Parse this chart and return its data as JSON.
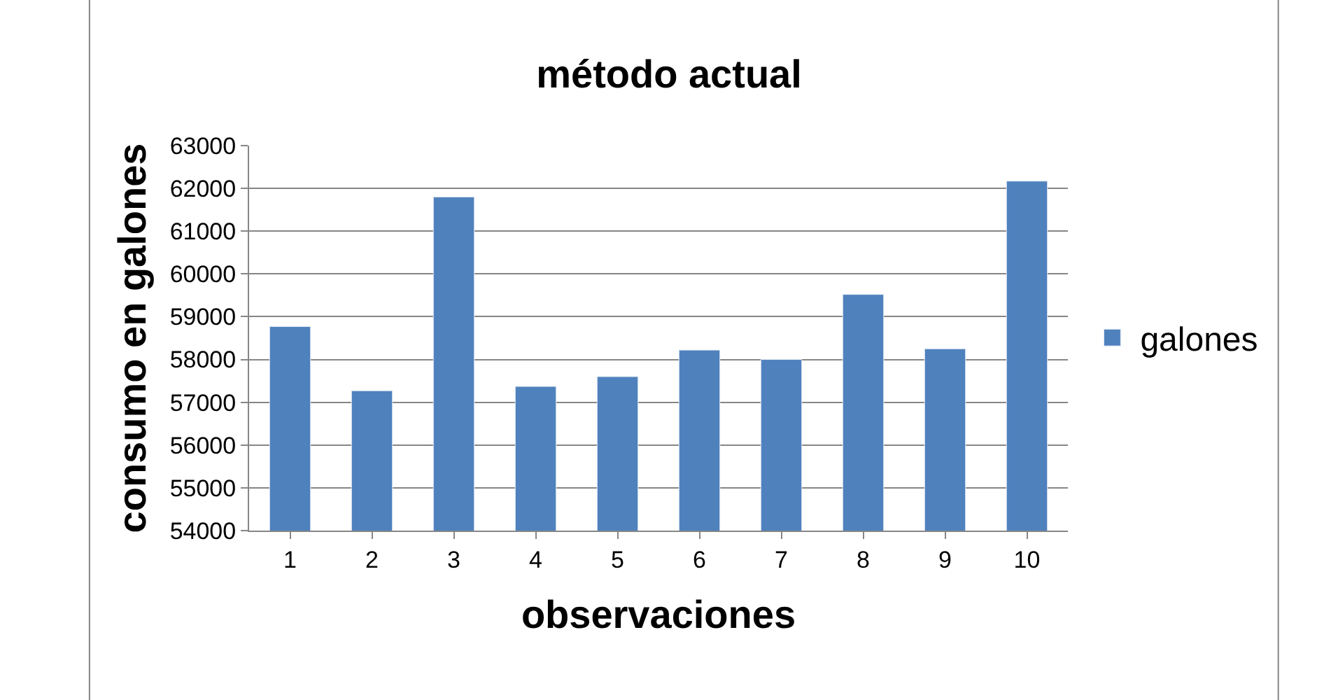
{
  "chart_data": {
    "type": "bar",
    "title": "método actual",
    "xlabel": "observaciones",
    "ylabel": "consumo en galones",
    "categories": [
      "1",
      "2",
      "3",
      "4",
      "5",
      "6",
      "7",
      "8",
      "9",
      "10"
    ],
    "series": [
      {
        "name": "galones",
        "color": "#4f81bd",
        "values": [
          58770,
          57270,
          61800,
          57370,
          57600,
          58220,
          58000,
          59520,
          58250,
          62170
        ]
      }
    ],
    "ylim": [
      54000,
      63000
    ],
    "yticks": [
      54000,
      55000,
      56000,
      57000,
      58000,
      59000,
      60000,
      61000,
      62000,
      63000
    ],
    "grid": "y",
    "legend": "right"
  }
}
